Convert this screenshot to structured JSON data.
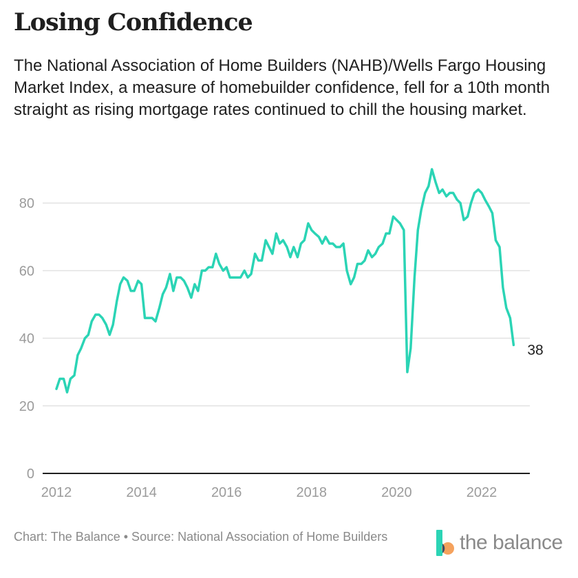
{
  "title": "Losing Confidence",
  "subtitle": "The National Association of Home Builders (NAHB)/Wells Fargo Housing Market Index, a measure of homebuilder confidence, fell for a 10th month straight as rising mortgage rates continued to chill the housing market.",
  "footer": {
    "credit": "Chart: The Balance • Source: National Association of Home Builders",
    "brand_text": "the balance"
  },
  "colors": {
    "line": "#2bd4b5",
    "grid": "#e2e2e2",
    "axis": "#1f1f1f",
    "tick_text": "#9b9b9b",
    "logo_teal": "#2bd4b5",
    "logo_orange": "#f5a25d",
    "logo_dark": "#3c4d66"
  },
  "chart_data": {
    "type": "line",
    "title": "Losing Confidence",
    "xlabel": "",
    "ylabel": "",
    "ylim": [
      0,
      90
    ],
    "yticks": [
      0,
      20,
      40,
      60,
      80
    ],
    "xlim": [
      2012,
      2023
    ],
    "xticks": [
      2012,
      2014,
      2016,
      2018,
      2020,
      2022
    ],
    "grid": "horizontal",
    "end_label": "38",
    "series": [
      {
        "values": [
          [
            2012.0,
            25
          ],
          [
            2012.08,
            28
          ],
          [
            2012.17,
            28
          ],
          [
            2012.25,
            24
          ],
          [
            2012.33,
            28
          ],
          [
            2012.42,
            29
          ],
          [
            2012.5,
            35
          ],
          [
            2012.58,
            37
          ],
          [
            2012.67,
            40
          ],
          [
            2012.75,
            41
          ],
          [
            2012.83,
            45
          ],
          [
            2012.92,
            47
          ],
          [
            2013.0,
            47
          ],
          [
            2013.08,
            46
          ],
          [
            2013.17,
            44
          ],
          [
            2013.25,
            41
          ],
          [
            2013.33,
            44
          ],
          [
            2013.42,
            51
          ],
          [
            2013.5,
            56
          ],
          [
            2013.58,
            58
          ],
          [
            2013.67,
            57
          ],
          [
            2013.75,
            54
          ],
          [
            2013.83,
            54
          ],
          [
            2013.92,
            57
          ],
          [
            2014.0,
            56
          ],
          [
            2014.08,
            46
          ],
          [
            2014.17,
            46
          ],
          [
            2014.25,
            46
          ],
          [
            2014.33,
            45
          ],
          [
            2014.42,
            49
          ],
          [
            2014.5,
            53
          ],
          [
            2014.58,
            55
          ],
          [
            2014.67,
            59
          ],
          [
            2014.75,
            54
          ],
          [
            2014.83,
            58
          ],
          [
            2014.92,
            58
          ],
          [
            2015.0,
            57
          ],
          [
            2015.08,
            55
          ],
          [
            2015.17,
            52
          ],
          [
            2015.25,
            56
          ],
          [
            2015.33,
            54
          ],
          [
            2015.42,
            60
          ],
          [
            2015.5,
            60
          ],
          [
            2015.58,
            61
          ],
          [
            2015.67,
            61
          ],
          [
            2015.75,
            65
          ],
          [
            2015.83,
            62
          ],
          [
            2015.92,
            60
          ],
          [
            2016.0,
            61
          ],
          [
            2016.08,
            58
          ],
          [
            2016.17,
            58
          ],
          [
            2016.25,
            58
          ],
          [
            2016.33,
            58
          ],
          [
            2016.42,
            60
          ],
          [
            2016.5,
            58
          ],
          [
            2016.58,
            59
          ],
          [
            2016.67,
            65
          ],
          [
            2016.75,
            63
          ],
          [
            2016.83,
            63
          ],
          [
            2016.92,
            69
          ],
          [
            2017.0,
            67
          ],
          [
            2017.08,
            65
          ],
          [
            2017.17,
            71
          ],
          [
            2017.25,
            68
          ],
          [
            2017.33,
            69
          ],
          [
            2017.42,
            67
          ],
          [
            2017.5,
            64
          ],
          [
            2017.58,
            67
          ],
          [
            2017.67,
            64
          ],
          [
            2017.75,
            68
          ],
          [
            2017.83,
            69
          ],
          [
            2017.92,
            74
          ],
          [
            2018.0,
            72
          ],
          [
            2018.08,
            71
          ],
          [
            2018.17,
            70
          ],
          [
            2018.25,
            68
          ],
          [
            2018.33,
            70
          ],
          [
            2018.42,
            68
          ],
          [
            2018.5,
            68
          ],
          [
            2018.58,
            67
          ],
          [
            2018.67,
            67
          ],
          [
            2018.75,
            68
          ],
          [
            2018.83,
            60
          ],
          [
            2018.92,
            56
          ],
          [
            2019.0,
            58
          ],
          [
            2019.08,
            62
          ],
          [
            2019.17,
            62
          ],
          [
            2019.25,
            63
          ],
          [
            2019.33,
            66
          ],
          [
            2019.42,
            64
          ],
          [
            2019.5,
            65
          ],
          [
            2019.58,
            67
          ],
          [
            2019.67,
            68
          ],
          [
            2019.75,
            71
          ],
          [
            2019.83,
            71
          ],
          [
            2019.92,
            76
          ],
          [
            2020.0,
            75
          ],
          [
            2020.08,
            74
          ],
          [
            2020.17,
            72
          ],
          [
            2020.25,
            30
          ],
          [
            2020.33,
            37
          ],
          [
            2020.42,
            58
          ],
          [
            2020.5,
            72
          ],
          [
            2020.58,
            78
          ],
          [
            2020.67,
            83
          ],
          [
            2020.75,
            85
          ],
          [
            2020.83,
            90
          ],
          [
            2020.92,
            86
          ],
          [
            2021.0,
            83
          ],
          [
            2021.08,
            84
          ],
          [
            2021.17,
            82
          ],
          [
            2021.25,
            83
          ],
          [
            2021.33,
            83
          ],
          [
            2021.42,
            81
          ],
          [
            2021.5,
            80
          ],
          [
            2021.58,
            75
          ],
          [
            2021.67,
            76
          ],
          [
            2021.75,
            80
          ],
          [
            2021.83,
            83
          ],
          [
            2021.92,
            84
          ],
          [
            2022.0,
            83
          ],
          [
            2022.08,
            81
          ],
          [
            2022.17,
            79
          ],
          [
            2022.25,
            77
          ],
          [
            2022.33,
            69
          ],
          [
            2022.42,
            67
          ],
          [
            2022.5,
            55
          ],
          [
            2022.58,
            49
          ],
          [
            2022.67,
            46
          ],
          [
            2022.75,
            38
          ]
        ]
      }
    ]
  }
}
